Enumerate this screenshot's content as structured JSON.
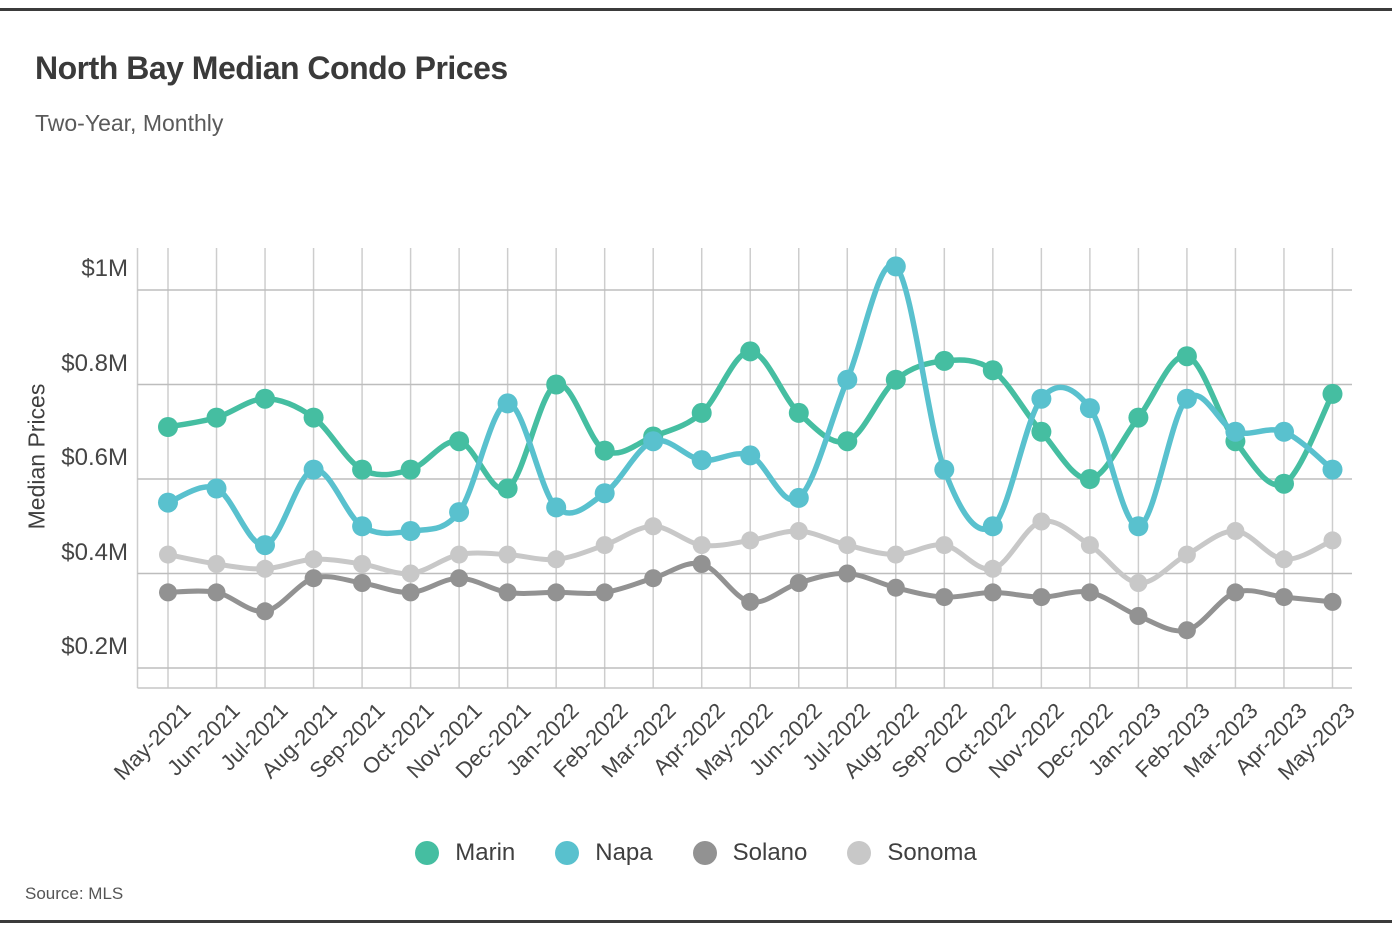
{
  "page": {
    "title": "North Bay Median Condo Prices",
    "subtitle": "Two-Year, Monthly",
    "source_label": "Source: MLS"
  },
  "chart_data": {
    "type": "line",
    "title": "North Bay Median Condo Prices",
    "subtitle": "Two-Year, Monthly",
    "xlabel": "",
    "ylabel": "Median Prices",
    "unit": "$M",
    "grid": true,
    "legend_position": "bottom",
    "ylim": [
      0.17,
      1.07
    ],
    "x": [
      "May-2021",
      "Jun-2021",
      "Jul-2021",
      "Aug-2021",
      "Sep-2021",
      "Oct-2021",
      "Nov-2021",
      "Dec-2021",
      "Jan-2022",
      "Feb-2022",
      "Mar-2022",
      "Apr-2022",
      "May-2022",
      "Jun-2022",
      "Jul-2022",
      "Aug-2022",
      "Sep-2022",
      "Oct-2022",
      "Nov-2022",
      "Dec-2022",
      "Jan-2023",
      "Feb-2023",
      "Mar-2023",
      "Apr-2023",
      "May-2023"
    ],
    "y_ticks": [
      {
        "value": 0.2,
        "label": "$0.2M"
      },
      {
        "value": 0.4,
        "label": "$0.4M"
      },
      {
        "value": 0.6,
        "label": "$0.6M"
      },
      {
        "value": 0.8,
        "label": "$0.8M"
      },
      {
        "value": 1.0,
        "label": "$1M"
      }
    ],
    "series": [
      {
        "name": "Marin",
        "color": "#45BEA1",
        "values": [
          0.71,
          0.73,
          0.77,
          0.73,
          0.62,
          0.62,
          0.68,
          0.58,
          0.8,
          0.66,
          0.69,
          0.74,
          0.87,
          0.74,
          0.68,
          0.81,
          0.85,
          0.83,
          0.7,
          0.6,
          0.73,
          0.86,
          0.68,
          0.59,
          0.78
        ]
      },
      {
        "name": "Napa",
        "color": "#59C1CE",
        "values": [
          0.55,
          0.58,
          0.46,
          0.62,
          0.5,
          0.49,
          0.53,
          0.76,
          0.54,
          0.57,
          0.68,
          0.64,
          0.65,
          0.56,
          0.81,
          1.05,
          0.62,
          0.5,
          0.77,
          0.75,
          0.5,
          0.77,
          0.7,
          0.7,
          0.62
        ]
      },
      {
        "name": "Solano",
        "color": "#929292",
        "values": [
          0.36,
          0.36,
          0.32,
          0.39,
          0.38,
          0.36,
          0.39,
          0.36,
          0.36,
          0.36,
          0.39,
          0.42,
          0.34,
          0.38,
          0.4,
          0.37,
          0.35,
          0.36,
          0.35,
          0.36,
          0.31,
          0.28,
          0.36,
          0.35,
          0.34
        ]
      },
      {
        "name": "Sonoma",
        "color": "#C8C8C8",
        "values": [
          0.44,
          0.42,
          0.41,
          0.43,
          0.42,
          0.4,
          0.44,
          0.44,
          0.43,
          0.46,
          0.5,
          0.46,
          0.47,
          0.49,
          0.46,
          0.44,
          0.46,
          0.41,
          0.51,
          0.46,
          0.38,
          0.44,
          0.49,
          0.43,
          0.47
        ]
      }
    ]
  }
}
